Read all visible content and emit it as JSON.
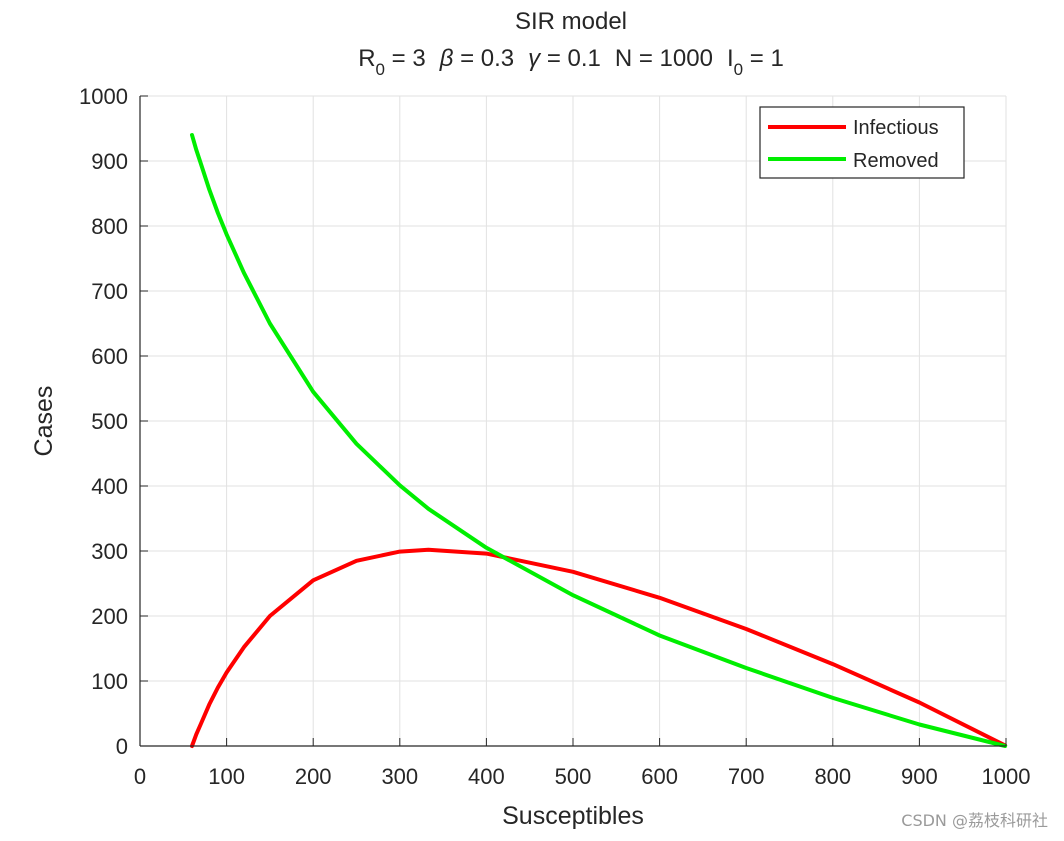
{
  "chart_data": {
    "type": "line",
    "title": "SIR model",
    "subtitle_parts": {
      "r0_base": "R",
      "r0_sub": "0",
      "r0_val": " = 3",
      "beta_sym": "β",
      "beta_val": " = 0.3",
      "gamma_sym": "γ",
      "gamma_val": " = 0.1",
      "n_text": "N = 1000",
      "i0_base": "I",
      "i0_sub": "0",
      "i0_val": " = 1"
    },
    "xlabel": "Susceptibles",
    "ylabel": "Cases",
    "xlim": [
      0,
      1000
    ],
    "ylim": [
      0,
      1000
    ],
    "xticks": [
      0,
      100,
      200,
      300,
      400,
      500,
      600,
      700,
      800,
      900,
      1000
    ],
    "yticks": [
      0,
      100,
      200,
      300,
      400,
      500,
      600,
      700,
      800,
      900,
      1000
    ],
    "grid": true,
    "legend_position": "top-right",
    "series": [
      {
        "name": "Infectious",
        "color": "#ff0000",
        "x": [
          60,
          65,
          70,
          80,
          90,
          100,
          120,
          150,
          200,
          250,
          300,
          333,
          400,
          500,
          600,
          700,
          800,
          900,
          999
        ],
        "y": [
          0,
          18,
          33,
          64,
          90,
          113,
          152,
          200,
          255,
          285,
          299,
          302,
          296,
          268,
          228,
          180,
          126,
          67,
          1
        ]
      },
      {
        "name": "Removed",
        "color": "#00ee00",
        "x": [
          60,
          65,
          70,
          80,
          90,
          100,
          120,
          150,
          200,
          250,
          300,
          333,
          400,
          500,
          600,
          700,
          800,
          900,
          999
        ],
        "y": [
          940,
          917,
          897,
          856,
          820,
          787,
          728,
          650,
          545,
          465,
          401,
          365,
          305,
          232,
          170,
          120,
          74,
          33,
          0
        ]
      }
    ]
  },
  "watermark": "CSDN @荔枝科研社"
}
